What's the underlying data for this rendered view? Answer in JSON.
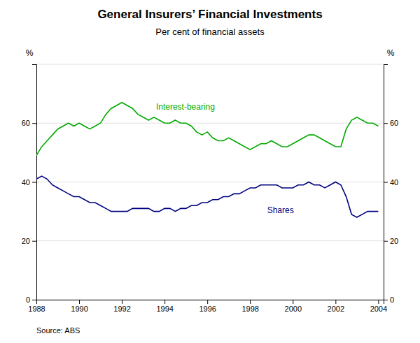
{
  "chart_data": {
    "type": "line",
    "title": "General Insurers’ Financial Investments",
    "subtitle": "Per cent of financial assets",
    "ylabel": "%",
    "y2label": "%",
    "source": "Source: ABS",
    "x": [
      1988.0,
      1988.25,
      1988.5,
      1988.75,
      1989.0,
      1989.25,
      1989.5,
      1989.75,
      1990.0,
      1990.25,
      1990.5,
      1990.75,
      1991.0,
      1991.25,
      1991.5,
      1991.75,
      1992.0,
      1992.25,
      1992.5,
      1992.75,
      1993.0,
      1993.25,
      1993.5,
      1993.75,
      1994.0,
      1994.25,
      1994.5,
      1994.75,
      1995.0,
      1995.25,
      1995.5,
      1995.75,
      1996.0,
      1996.25,
      1996.5,
      1996.75,
      1997.0,
      1997.25,
      1997.5,
      1997.75,
      1998.0,
      1998.25,
      1998.5,
      1998.75,
      1999.0,
      1999.25,
      1999.5,
      1999.75,
      2000.0,
      2000.25,
      2000.5,
      2000.75,
      2001.0,
      2001.25,
      2001.5,
      2001.75,
      2002.0,
      2002.25,
      2002.5,
      2002.75,
      2003.0,
      2003.25,
      2003.5,
      2003.75,
      2004.0
    ],
    "series": [
      {
        "color": "#00aa00",
        "values": [
          49,
          52,
          54,
          56,
          58,
          59,
          60,
          59,
          60,
          59,
          58,
          59,
          60,
          63,
          65,
          66,
          67,
          66,
          65,
          63,
          62,
          61,
          62,
          61,
          60,
          60,
          61,
          60,
          60,
          59,
          57,
          56,
          57,
          55,
          54,
          54,
          55,
          54,
          53,
          52,
          51,
          52,
          53,
          53,
          54,
          53,
          52,
          52,
          53,
          54,
          55,
          56,
          56,
          55,
          54,
          53,
          52,
          52,
          58,
          61,
          62,
          61,
          60,
          60,
          59
        ]
      },
      {
        "color": "#000080",
        "values": [
          41,
          42,
          41,
          39,
          38,
          37,
          36,
          35,
          35,
          34,
          33,
          33,
          32,
          31,
          30,
          30,
          30,
          30,
          31,
          31,
          31,
          31,
          30,
          30,
          31,
          31,
          30,
          31,
          31,
          32,
          32,
          33,
          33,
          34,
          34,
          35,
          35,
          36,
          36,
          37,
          38,
          38,
          39,
          39,
          39,
          39,
          38,
          38,
          38,
          39,
          39,
          40,
          39,
          39,
          38,
          39,
          40,
          39,
          35,
          29,
          28,
          29,
          30,
          30,
          30
        ]
      }
    ],
    "annotations": [
      {
        "text": "Interest-bearing",
        "x": 1993.6,
        "y": 64.5,
        "color": "#00aa00"
      },
      {
        "text": "Shares",
        "x": 1998.8,
        "y": 29.5,
        "color": "#000080"
      }
    ],
    "xlim": [
      1988.0,
      2004.25
    ],
    "xticks": [
      1988,
      1990,
      1992,
      1994,
      1996,
      1998,
      2000,
      2002,
      2004
    ],
    "ylim": [
      0,
      80
    ],
    "yticks": [
      0,
      20,
      40,
      60,
      {
        "value": 80,
        "label": null
      }
    ],
    "y2lim": [
      0,
      80
    ],
    "y2ticks": [
      0,
      20,
      40,
      60,
      {
        "value": 80,
        "label": null
      }
    ],
    "grid": true
  }
}
